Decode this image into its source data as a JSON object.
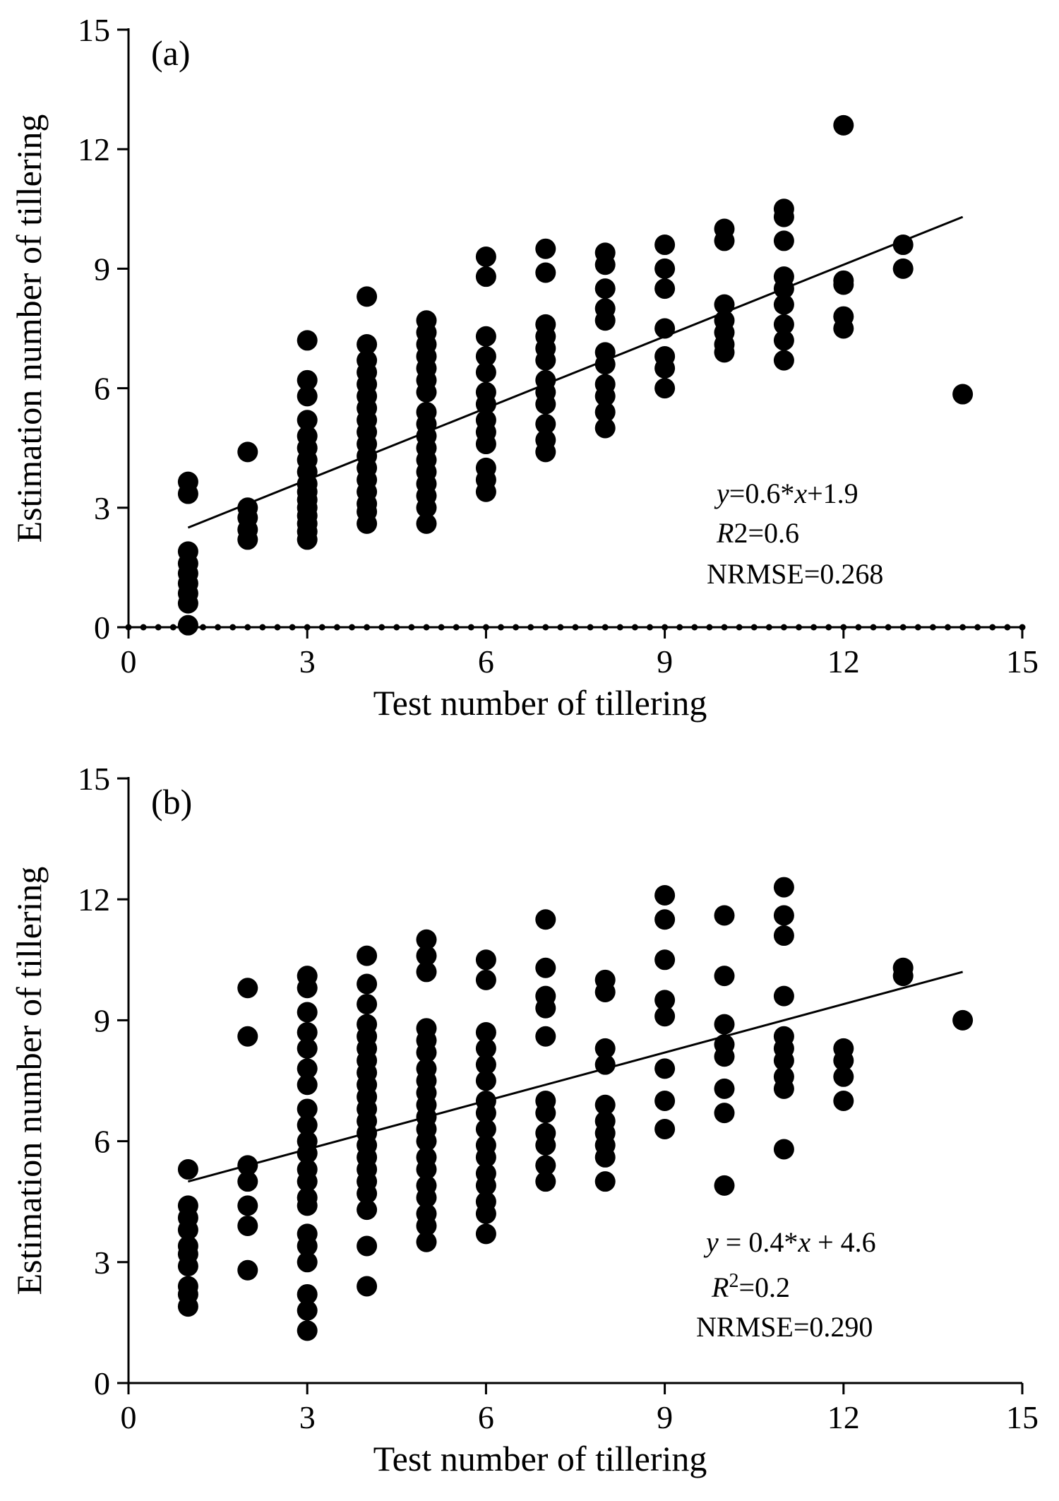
{
  "chart_data": [
    {
      "type": "scatter",
      "panel_label": "(a)",
      "xlabel": "Test number of tillering",
      "ylabel": "Estimation number of tillering",
      "xlim": [
        0,
        15
      ],
      "ylim": [
        0,
        15
      ],
      "xticks": [
        0,
        3,
        6,
        9,
        12,
        15
      ],
      "yticks": [
        0,
        3,
        6,
        9,
        12,
        15
      ],
      "grid": false,
      "marker_color": "#000000",
      "zero_line_style": "dotted",
      "fit_line": {
        "slope": 0.6,
        "intercept": 1.9,
        "x_range": [
          1,
          14
        ]
      },
      "annotations": {
        "equation": {
          "y": "y",
          "rest": "=0.6*",
          "x": "x",
          "tail": "+1.9"
        },
        "r2": {
          "R": "R",
          "rest": "2=0.6"
        },
        "nrmse": "NRMSE=0.268"
      },
      "points": [
        [
          1,
          3.65
        ],
        [
          1,
          3.35
        ],
        [
          1,
          1.9
        ],
        [
          1,
          1.6
        ],
        [
          1,
          1.35
        ],
        [
          1,
          1.1
        ],
        [
          1,
          0.85
        ],
        [
          1,
          0.6
        ],
        [
          1,
          0.05
        ],
        [
          2,
          4.4
        ],
        [
          2,
          3.0
        ],
        [
          2,
          2.75
        ],
        [
          2,
          2.45
        ],
        [
          2,
          2.2
        ],
        [
          3,
          7.2
        ],
        [
          3,
          6.2
        ],
        [
          3,
          5.8
        ],
        [
          3,
          5.2
        ],
        [
          3,
          4.8
        ],
        [
          3,
          4.5
        ],
        [
          3,
          4.2
        ],
        [
          3,
          3.9
        ],
        [
          3,
          3.6
        ],
        [
          3,
          3.4
        ],
        [
          3,
          3.2
        ],
        [
          3,
          3.0
        ],
        [
          3,
          2.8
        ],
        [
          3,
          2.6
        ],
        [
          3,
          2.4
        ],
        [
          3,
          2.2
        ],
        [
          4,
          8.3
        ],
        [
          4,
          7.1
        ],
        [
          4,
          6.7
        ],
        [
          4,
          6.4
        ],
        [
          4,
          6.1
        ],
        [
          4,
          5.8
        ],
        [
          4,
          5.5
        ],
        [
          4,
          5.2
        ],
        [
          4,
          4.9
        ],
        [
          4,
          4.6
        ],
        [
          4,
          4.3
        ],
        [
          4,
          4.0
        ],
        [
          4,
          3.7
        ],
        [
          4,
          3.4
        ],
        [
          4,
          3.1
        ],
        [
          4,
          2.9
        ],
        [
          4,
          2.6
        ],
        [
          5,
          7.7
        ],
        [
          5,
          7.4
        ],
        [
          5,
          7.1
        ],
        [
          5,
          6.8
        ],
        [
          5,
          6.5
        ],
        [
          5,
          6.2
        ],
        [
          5,
          5.9
        ],
        [
          5,
          5.4
        ],
        [
          5,
          5.1
        ],
        [
          5,
          4.8
        ],
        [
          5,
          4.5
        ],
        [
          5,
          4.2
        ],
        [
          5,
          3.9
        ],
        [
          5,
          3.6
        ],
        [
          5,
          3.3
        ],
        [
          5,
          3.0
        ],
        [
          5,
          2.6
        ],
        [
          6,
          9.3
        ],
        [
          6,
          8.8
        ],
        [
          6,
          7.3
        ],
        [
          6,
          6.8
        ],
        [
          6,
          6.4
        ],
        [
          6,
          5.9
        ],
        [
          6,
          5.6
        ],
        [
          6,
          5.2
        ],
        [
          6,
          4.9
        ],
        [
          6,
          4.6
        ],
        [
          6,
          4.0
        ],
        [
          6,
          3.7
        ],
        [
          6,
          3.4
        ],
        [
          7,
          9.5
        ],
        [
          7,
          8.9
        ],
        [
          7,
          7.6
        ],
        [
          7,
          7.3
        ],
        [
          7,
          7.0
        ],
        [
          7,
          6.7
        ],
        [
          7,
          6.2
        ],
        [
          7,
          5.9
        ],
        [
          7,
          5.6
        ],
        [
          7,
          5.1
        ],
        [
          7,
          4.7
        ],
        [
          7,
          4.4
        ],
        [
          8,
          9.4
        ],
        [
          8,
          9.1
        ],
        [
          8,
          8.5
        ],
        [
          8,
          8.0
        ],
        [
          8,
          7.7
        ],
        [
          8,
          6.9
        ],
        [
          8,
          6.6
        ],
        [
          8,
          6.1
        ],
        [
          8,
          5.8
        ],
        [
          8,
          5.4
        ],
        [
          8,
          5.0
        ],
        [
          9,
          9.6
        ],
        [
          9,
          9.0
        ],
        [
          9,
          8.5
        ],
        [
          9,
          7.5
        ],
        [
          9,
          6.8
        ],
        [
          9,
          6.5
        ],
        [
          9,
          6.0
        ],
        [
          10,
          10.0
        ],
        [
          10,
          9.7
        ],
        [
          10,
          8.1
        ],
        [
          10,
          7.7
        ],
        [
          10,
          7.4
        ],
        [
          10,
          7.1
        ],
        [
          10,
          6.9
        ],
        [
          11,
          10.5
        ],
        [
          11,
          10.3
        ],
        [
          11,
          9.7
        ],
        [
          11,
          8.8
        ],
        [
          11,
          8.5
        ],
        [
          11,
          8.1
        ],
        [
          11,
          7.6
        ],
        [
          11,
          7.2
        ],
        [
          11,
          6.7
        ],
        [
          12,
          12.6
        ],
        [
          12,
          8.7
        ],
        [
          12,
          8.6
        ],
        [
          12,
          7.8
        ],
        [
          12,
          7.5
        ],
        [
          13,
          9.6
        ],
        [
          13,
          9.0
        ],
        [
          14,
          5.85
        ]
      ]
    },
    {
      "type": "scatter",
      "panel_label": "(b)",
      "xlabel": "Test number of tillering",
      "ylabel": "Estimation number of tillering",
      "xlim": [
        0,
        15
      ],
      "ylim": [
        0,
        15
      ],
      "xticks": [
        0,
        3,
        6,
        9,
        12,
        15
      ],
      "yticks": [
        0,
        3,
        6,
        9,
        12,
        15
      ],
      "grid": false,
      "marker_color": "#000000",
      "fit_line": {
        "slope": 0.4,
        "intercept": 4.6,
        "x_range": [
          1,
          14
        ]
      },
      "annotations": {
        "equation": {
          "y": "y",
          "rest": " = 0.4*",
          "x": "x",
          "tail": " + 4.6"
        },
        "r2": {
          "R": "R",
          "sup": "2",
          "rest": "=0.2"
        },
        "nrmse": "NRMSE=0.290"
      },
      "points": [
        [
          1,
          5.3
        ],
        [
          1,
          4.4
        ],
        [
          1,
          4.1
        ],
        [
          1,
          3.8
        ],
        [
          1,
          3.4
        ],
        [
          1,
          3.2
        ],
        [
          1,
          2.9
        ],
        [
          1,
          2.4
        ],
        [
          1,
          2.2
        ],
        [
          1,
          1.9
        ],
        [
          2,
          9.8
        ],
        [
          2,
          8.6
        ],
        [
          2,
          5.4
        ],
        [
          2,
          5.0
        ],
        [
          2,
          4.4
        ],
        [
          2,
          3.9
        ],
        [
          2,
          2.8
        ],
        [
          3,
          10.1
        ],
        [
          3,
          9.8
        ],
        [
          3,
          9.2
        ],
        [
          3,
          8.7
        ],
        [
          3,
          8.3
        ],
        [
          3,
          7.8
        ],
        [
          3,
          7.4
        ],
        [
          3,
          6.8
        ],
        [
          3,
          6.4
        ],
        [
          3,
          6.0
        ],
        [
          3,
          5.7
        ],
        [
          3,
          5.3
        ],
        [
          3,
          5.0
        ],
        [
          3,
          4.6
        ],
        [
          3,
          4.4
        ],
        [
          3,
          3.7
        ],
        [
          3,
          3.4
        ],
        [
          3,
          3.0
        ],
        [
          3,
          2.2
        ],
        [
          3,
          1.8
        ],
        [
          3,
          1.3
        ],
        [
          4,
          10.6
        ],
        [
          4,
          9.9
        ],
        [
          4,
          9.4
        ],
        [
          4,
          8.9
        ],
        [
          4,
          8.6
        ],
        [
          4,
          8.3
        ],
        [
          4,
          8.0
        ],
        [
          4,
          7.7
        ],
        [
          4,
          7.4
        ],
        [
          4,
          7.1
        ],
        [
          4,
          6.8
        ],
        [
          4,
          6.5
        ],
        [
          4,
          6.2
        ],
        [
          4,
          5.9
        ],
        [
          4,
          5.6
        ],
        [
          4,
          5.3
        ],
        [
          4,
          5.0
        ],
        [
          4,
          4.7
        ],
        [
          4,
          4.3
        ],
        [
          4,
          3.4
        ],
        [
          4,
          2.4
        ],
        [
          5,
          11.0
        ],
        [
          5,
          10.6
        ],
        [
          5,
          10.2
        ],
        [
          5,
          8.8
        ],
        [
          5,
          8.5
        ],
        [
          5,
          8.2
        ],
        [
          5,
          7.8
        ],
        [
          5,
          7.5
        ],
        [
          5,
          7.2
        ],
        [
          5,
          6.9
        ],
        [
          5,
          6.6
        ],
        [
          5,
          6.3
        ],
        [
          5,
          6.0
        ],
        [
          5,
          5.6
        ],
        [
          5,
          5.3
        ],
        [
          5,
          4.9
        ],
        [
          5,
          4.6
        ],
        [
          5,
          4.2
        ],
        [
          5,
          3.9
        ],
        [
          5,
          3.5
        ],
        [
          6,
          10.5
        ],
        [
          6,
          10.0
        ],
        [
          6,
          8.7
        ],
        [
          6,
          8.3
        ],
        [
          6,
          7.9
        ],
        [
          6,
          7.5
        ],
        [
          6,
          7.0
        ],
        [
          6,
          6.7
        ],
        [
          6,
          6.3
        ],
        [
          6,
          5.9
        ],
        [
          6,
          5.6
        ],
        [
          6,
          5.2
        ],
        [
          6,
          4.9
        ],
        [
          6,
          4.5
        ],
        [
          6,
          4.2
        ],
        [
          6,
          3.7
        ],
        [
          7,
          11.5
        ],
        [
          7,
          10.3
        ],
        [
          7,
          9.6
        ],
        [
          7,
          9.3
        ],
        [
          7,
          8.6
        ],
        [
          7,
          7.0
        ],
        [
          7,
          6.7
        ],
        [
          7,
          6.2
        ],
        [
          7,
          5.9
        ],
        [
          7,
          5.4
        ],
        [
          7,
          5.0
        ],
        [
          8,
          10.0
        ],
        [
          8,
          9.7
        ],
        [
          8,
          8.3
        ],
        [
          8,
          7.9
        ],
        [
          8,
          6.9
        ],
        [
          8,
          6.5
        ],
        [
          8,
          6.2
        ],
        [
          8,
          5.9
        ],
        [
          8,
          5.6
        ],
        [
          8,
          5.0
        ],
        [
          9,
          12.1
        ],
        [
          9,
          11.5
        ],
        [
          9,
          10.5
        ],
        [
          9,
          9.5
        ],
        [
          9,
          9.1
        ],
        [
          9,
          7.8
        ],
        [
          9,
          7.0
        ],
        [
          9,
          6.3
        ],
        [
          10,
          11.6
        ],
        [
          10,
          10.1
        ],
        [
          10,
          8.9
        ],
        [
          10,
          8.4
        ],
        [
          10,
          8.1
        ],
        [
          10,
          7.3
        ],
        [
          10,
          6.7
        ],
        [
          10,
          4.9
        ],
        [
          11,
          12.3
        ],
        [
          11,
          11.6
        ],
        [
          11,
          11.1
        ],
        [
          11,
          9.6
        ],
        [
          11,
          8.6
        ],
        [
          11,
          8.3
        ],
        [
          11,
          8.0
        ],
        [
          11,
          7.6
        ],
        [
          11,
          7.3
        ],
        [
          11,
          5.8
        ],
        [
          12,
          8.3
        ],
        [
          12,
          8.0
        ],
        [
          12,
          7.6
        ],
        [
          12,
          7.0
        ],
        [
          13,
          10.3
        ],
        [
          13,
          10.1
        ],
        [
          14,
          9.0
        ]
      ]
    }
  ]
}
